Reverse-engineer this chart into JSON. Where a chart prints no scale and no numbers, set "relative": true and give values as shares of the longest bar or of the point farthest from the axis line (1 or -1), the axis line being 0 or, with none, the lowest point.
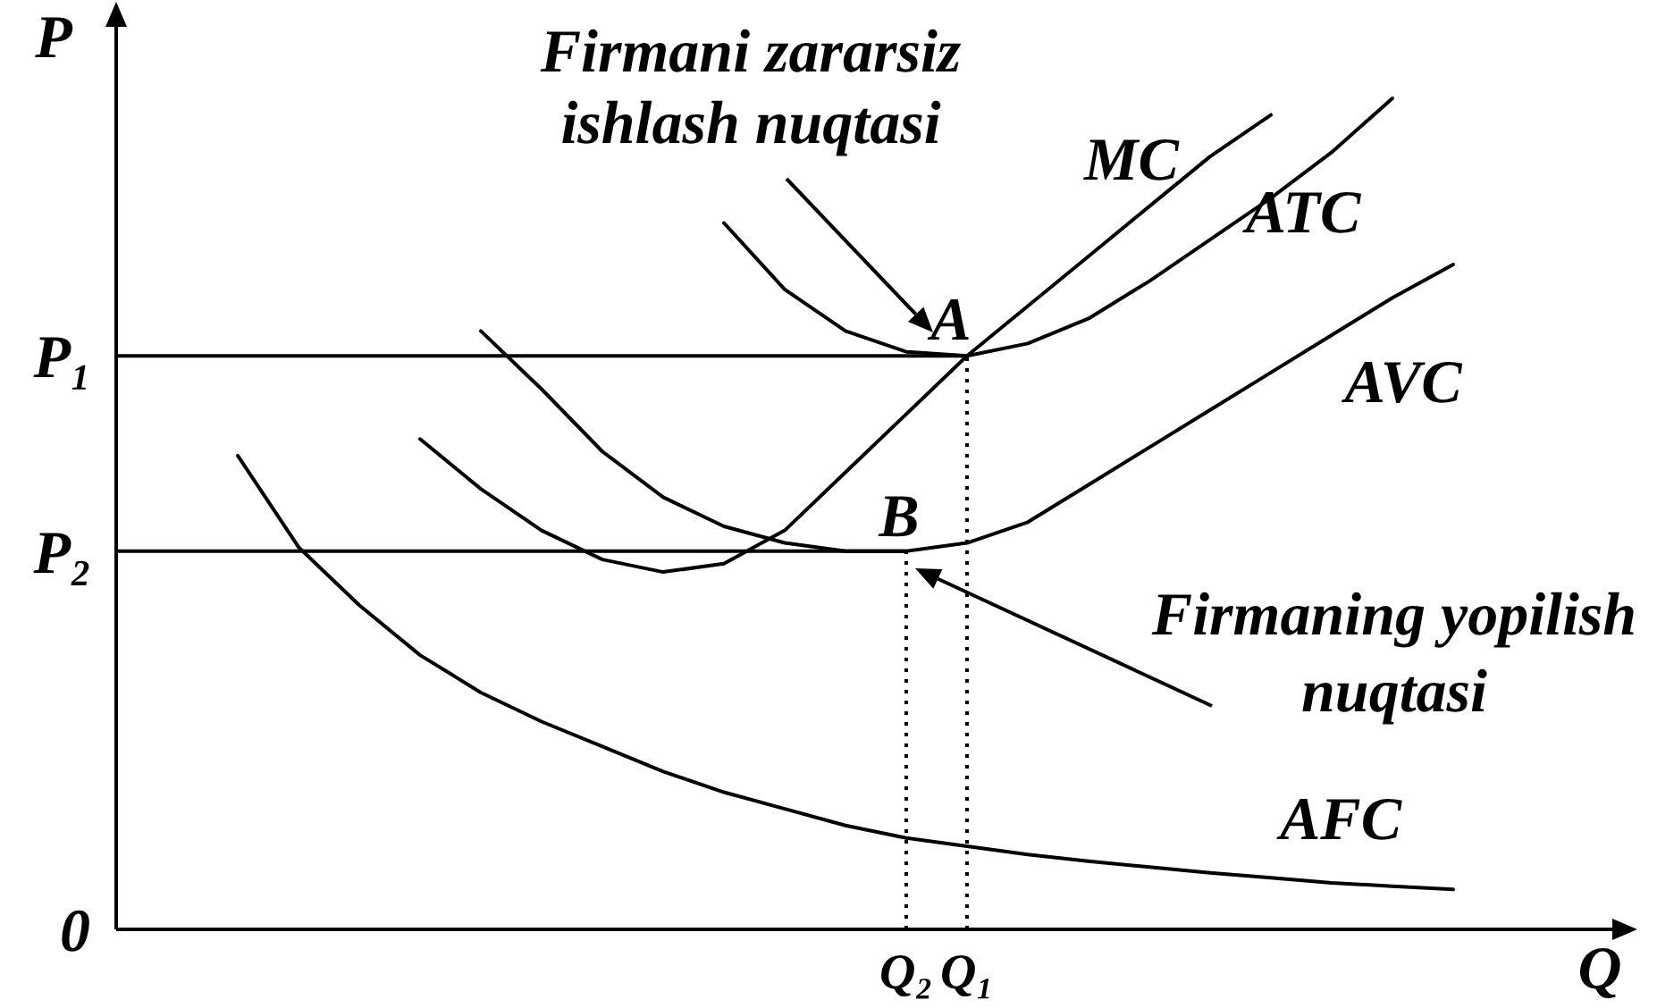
{
  "chart_data": {
    "type": "line",
    "relative": true,
    "xlabel": "Q",
    "ylabel": "P",
    "categories": [
      null,
      null,
      null,
      null,
      null,
      null,
      null,
      null,
      null,
      null,
      null,
      null,
      null,
      "Q₂",
      "Q₁",
      null,
      null,
      null,
      null,
      null,
      null,
      null,
      null,
      null,
      null
    ],
    "series": [
      {
        "name": "MC",
        "color": "#000000",
        "values": [
          null,
          null,
          null,
          null,
          null,
          0.59,
          0.53,
          0.48,
          0.445,
          0.43,
          0.44,
          0.48,
          0.55,
          0.62,
          0.69,
          0.75,
          0.81,
          0.87,
          0.93,
          0.98,
          null,
          null,
          null,
          null,
          null
        ]
      },
      {
        "name": "ATC",
        "color": "#000000",
        "values": [
          null,
          null,
          null,
          null,
          null,
          null,
          null,
          null,
          null,
          null,
          0.85,
          0.77,
          0.72,
          0.695,
          0.69,
          0.705,
          0.735,
          0.78,
          0.83,
          0.88,
          0.935,
          1,
          null,
          null,
          null
        ]
      },
      {
        "name": "AVC",
        "color": "#000000",
        "values": [
          null,
          null,
          null,
          null,
          null,
          null,
          0.72,
          0.65,
          0.575,
          0.52,
          0.485,
          0.465,
          0.455,
          0.455,
          0.465,
          0.49,
          0.535,
          0.58,
          0.625,
          0.67,
          0.715,
          0.76,
          0.8,
          null,
          null
        ]
      },
      {
        "name": "AFC",
        "color": "#000000",
        "values": [
          null,
          null,
          0.57,
          0.46,
          0.39,
          0.33,
          0.285,
          0.25,
          0.22,
          0.19,
          0.165,
          0.145,
          0.125,
          0.11,
          0.1,
          0.09,
          0.082,
          0.075,
          0.068,
          0.062,
          0.056,
          0.052,
          0.048,
          null,
          null
        ]
      }
    ],
    "ref_lines": [
      {
        "axis": "y",
        "value": 0.69,
        "label": "P₁"
      },
      {
        "axis": "y",
        "value": 0.455,
        "label": "P₂"
      }
    ],
    "annotations": [
      "Firmani zararsiz\nishlash nuqtasi",
      "Firmaning yopilish\nnuqtasi",
      "A",
      "B",
      "0"
    ]
  }
}
